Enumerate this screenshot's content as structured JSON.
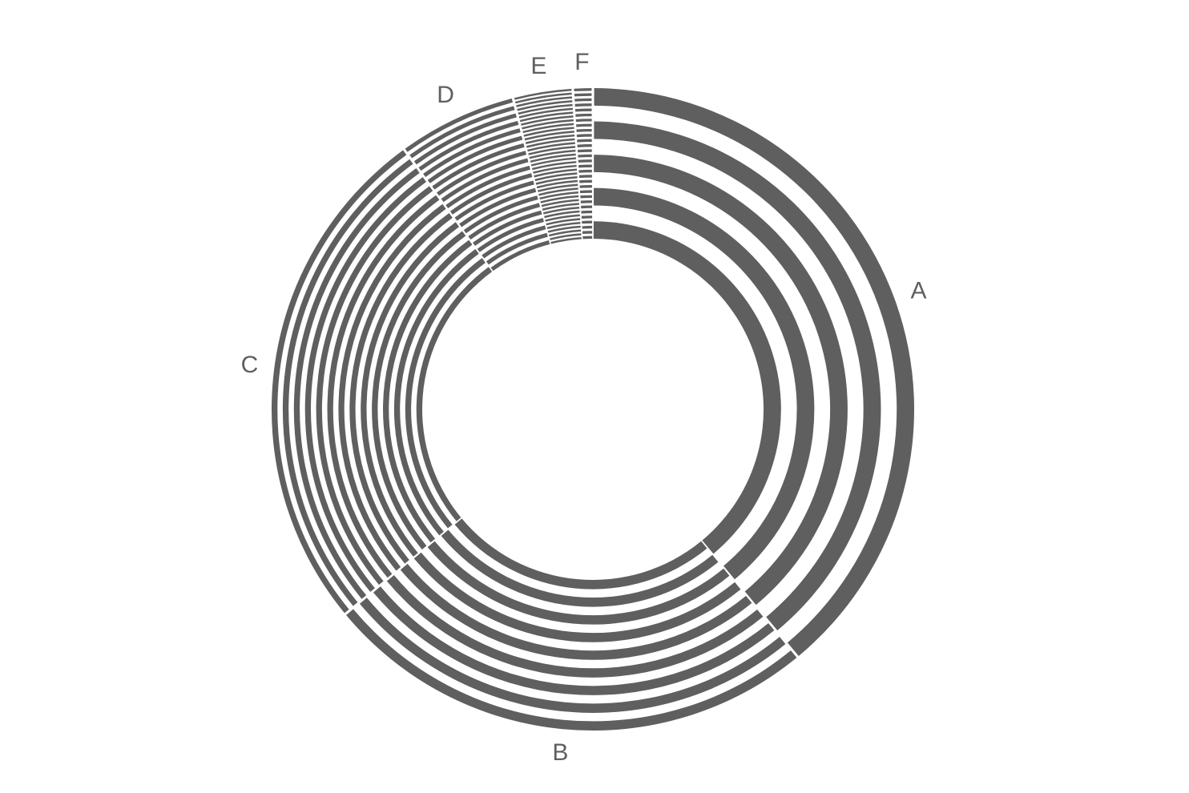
{
  "chart_data": {
    "type": "pie",
    "categories": [
      "A",
      "B",
      "C",
      "D",
      "E",
      "F"
    ],
    "values": [
      39,
      25,
      26,
      6,
      3,
      1
    ],
    "color": "#5f5f5f"
  }
}
